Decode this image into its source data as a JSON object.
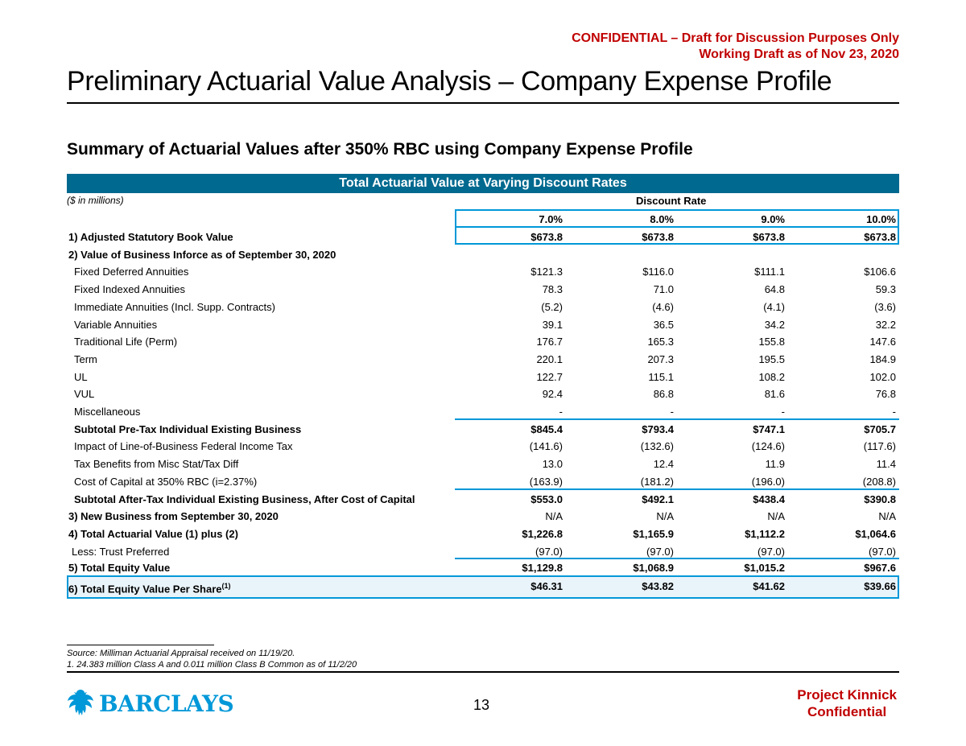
{
  "header": {
    "confidential_line1": "CONFIDENTIAL – Draft for Discussion Purposes Only",
    "confidential_line2": "Working Draft as of Nov 23, 2020",
    "title": "Preliminary Actuarial Value Analysis – Company Expense Profile",
    "subtitle": "Summary of Actuarial Values after 350% RBC using Company Expense Profile"
  },
  "table": {
    "banner": "Total Actuarial Value at Varying Discount Rates",
    "units": "($ in millions)",
    "group_header": "Discount Rate",
    "columns": [
      "7.0%",
      "8.0%",
      "9.0%",
      "10.0%"
    ],
    "rows": [
      {
        "label": "1) Adjusted Statutory Book Value",
        "values": [
          "$673.8",
          "$673.8",
          "$673.8",
          "$673.8"
        ]
      },
      {
        "label": "2) Value of Business Inforce as of September 30, 2020",
        "values": [
          "",
          "",
          "",
          ""
        ]
      },
      {
        "label": "Fixed Deferred Annuities",
        "values": [
          "$121.3",
          "$116.0",
          "$111.1",
          "$106.6"
        ]
      },
      {
        "label": "Fixed Indexed Annuities",
        "values": [
          "78.3",
          "71.0",
          "64.8",
          "59.3"
        ]
      },
      {
        "label": "Immediate Annuities (Incl. Supp. Contracts)",
        "values": [
          "(5.2)",
          "(4.6)",
          "(4.1)",
          "(3.6)"
        ]
      },
      {
        "label": "Variable Annuities",
        "values": [
          "39.1",
          "36.5",
          "34.2",
          "32.2"
        ]
      },
      {
        "label": "Traditional Life (Perm)",
        "values": [
          "176.7",
          "165.3",
          "155.8",
          "147.6"
        ]
      },
      {
        "label": "Term",
        "values": [
          "220.1",
          "207.3",
          "195.5",
          "184.9"
        ]
      },
      {
        "label": "UL",
        "values": [
          "122.7",
          "115.1",
          "108.2",
          "102.0"
        ]
      },
      {
        "label": "VUL",
        "values": [
          "92.4",
          "86.8",
          "81.6",
          "76.8"
        ]
      },
      {
        "label": "Miscellaneous",
        "values": [
          "-",
          "-",
          "-",
          "-"
        ]
      },
      {
        "label": "Subtotal Pre-Tax Individual Existing Business",
        "values": [
          "$845.4",
          "$793.4",
          "$747.1",
          "$705.7"
        ]
      },
      {
        "label": "Impact of Line-of-Business Federal Income Tax",
        "values": [
          "(141.6)",
          "(132.6)",
          "(124.6)",
          "(117.6)"
        ]
      },
      {
        "label": "Tax Benefits from Misc Stat/Tax Diff",
        "values": [
          "13.0",
          "12.4",
          "11.9",
          "11.4"
        ]
      },
      {
        "label": "Cost of Capital at 350% RBC (i=2.37%)",
        "values": [
          "(163.9)",
          "(181.2)",
          "(196.0)",
          "(208.8)"
        ]
      },
      {
        "label": "Subtotal After-Tax Individual Existing Business, After Cost of Capital",
        "values": [
          "$553.0",
          "$492.1",
          "$438.4",
          "$390.8"
        ]
      },
      {
        "label": "3) New Business from September 30, 2020",
        "values": [
          "N/A",
          "N/A",
          "N/A",
          "N/A"
        ]
      },
      {
        "label": "4) Total Actuarial Value (1) plus (2)",
        "values": [
          "$1,226.8",
          "$1,165.9",
          "$1,112.2",
          "$1,064.6"
        ]
      },
      {
        "label": "Less: Trust Preferred",
        "values": [
          "(97.0)",
          "(97.0)",
          "(97.0)",
          "(97.0)"
        ]
      },
      {
        "label": "5) Total Equity Value",
        "values": [
          "$1,129.8",
          "$1,068.9",
          "$1,015.2",
          "$967.6"
        ]
      }
    ],
    "eps_row": {
      "label": "6) Total Equity Value Per Share",
      "footnote_mark": "(1)",
      "values": [
        "$46.31",
        "$43.82",
        "$41.62",
        "$39.66"
      ]
    }
  },
  "footnotes": {
    "source": "Source: Milliman Actuarial Appraisal received on 11/19/20.",
    "note1": "1. 24.383 million Class A and 0.011 million Class B Common as of 11/2/20"
  },
  "footer": {
    "logo_text": "BARCLAYS",
    "page_number": "13",
    "project_line1": "Project Kinnick",
    "project_line2": "Confidential"
  },
  "colors": {
    "banner": "#00698f",
    "accent": "#0098d8",
    "confidential_red": "#c00000"
  }
}
